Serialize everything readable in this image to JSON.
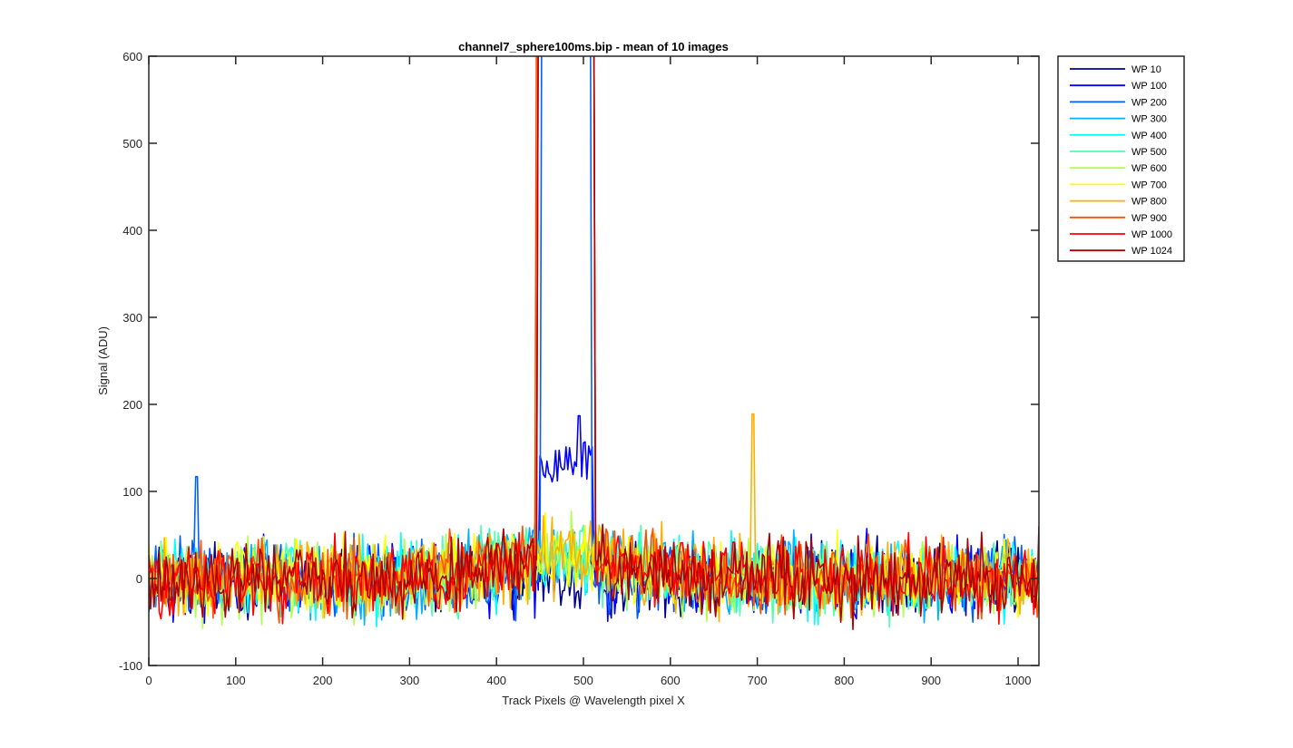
{
  "chart_data": {
    "type": "line",
    "title": "channel7_sphere100ms.bip - mean of 10 images",
    "xlabel": "Track Pixels @ Wavelength pixel X",
    "ylabel": "Signal (ADU)",
    "xlim": [
      0,
      1024
    ],
    "ylim": [
      -100,
      600
    ],
    "xticks": [
      0,
      100,
      200,
      300,
      400,
      500,
      600,
      700,
      800,
      900,
      1000
    ],
    "yticks": [
      -100,
      0,
      100,
      200,
      300,
      400,
      500,
      600
    ],
    "xtick_labels": [
      "0",
      "100",
      "200",
      "300",
      "400",
      "500",
      "600",
      "700",
      "800",
      "900",
      "1000"
    ],
    "ytick_labels": [
      "-100",
      "0",
      "100",
      "200",
      "300",
      "400",
      "500",
      "600"
    ],
    "grid": false,
    "legend_position": "outside-top-right",
    "noise_baseline": 0,
    "noise_amplitude": 30,
    "saturated_region": [
      447,
      512
    ],
    "series": [
      {
        "name": "WP 10",
        "color": "#00008f",
        "features": [
          {
            "type": "dip",
            "center": 493,
            "value": -85
          }
        ]
      },
      {
        "name": "WP 100",
        "color": "#0000ff",
        "features": [
          {
            "type": "hump",
            "range": [
              450,
              510
            ],
            "value": 135
          },
          {
            "type": "peak",
            "x": 495,
            "value": 187
          }
        ]
      },
      {
        "name": "WP 200",
        "color": "#0060ff",
        "features": [
          {
            "type": "saturated",
            "range": [
              452,
              508
            ],
            "value": 600
          },
          {
            "type": "spike",
            "x": 55,
            "value": 117
          }
        ]
      },
      {
        "name": "WP 300",
        "color": "#00afff",
        "features": []
      },
      {
        "name": "WP 400",
        "color": "#00ffff",
        "features": []
      },
      {
        "name": "WP 500",
        "color": "#50ffaf",
        "features": []
      },
      {
        "name": "WP 600",
        "color": "#afff50",
        "features": []
      },
      {
        "name": "WP 700",
        "color": "#ffff00",
        "features": []
      },
      {
        "name": "WP 800",
        "color": "#ffaf00",
        "features": [
          {
            "type": "spike",
            "x": 695,
            "value": 189
          }
        ]
      },
      {
        "name": "WP 900",
        "color": "#ff5000",
        "features": [
          {
            "type": "saturated",
            "range": [
              446,
              512
            ],
            "value": 600
          }
        ]
      },
      {
        "name": "WP 1000",
        "color": "#ff0000",
        "features": [
          {
            "type": "saturated",
            "range": [
              447,
              512
            ],
            "value": 600
          }
        ]
      },
      {
        "name": "WP 1024",
        "color": "#af0000",
        "features": [
          {
            "type": "saturated",
            "range": [
              447,
              512
            ],
            "value": 600
          }
        ]
      }
    ]
  }
}
